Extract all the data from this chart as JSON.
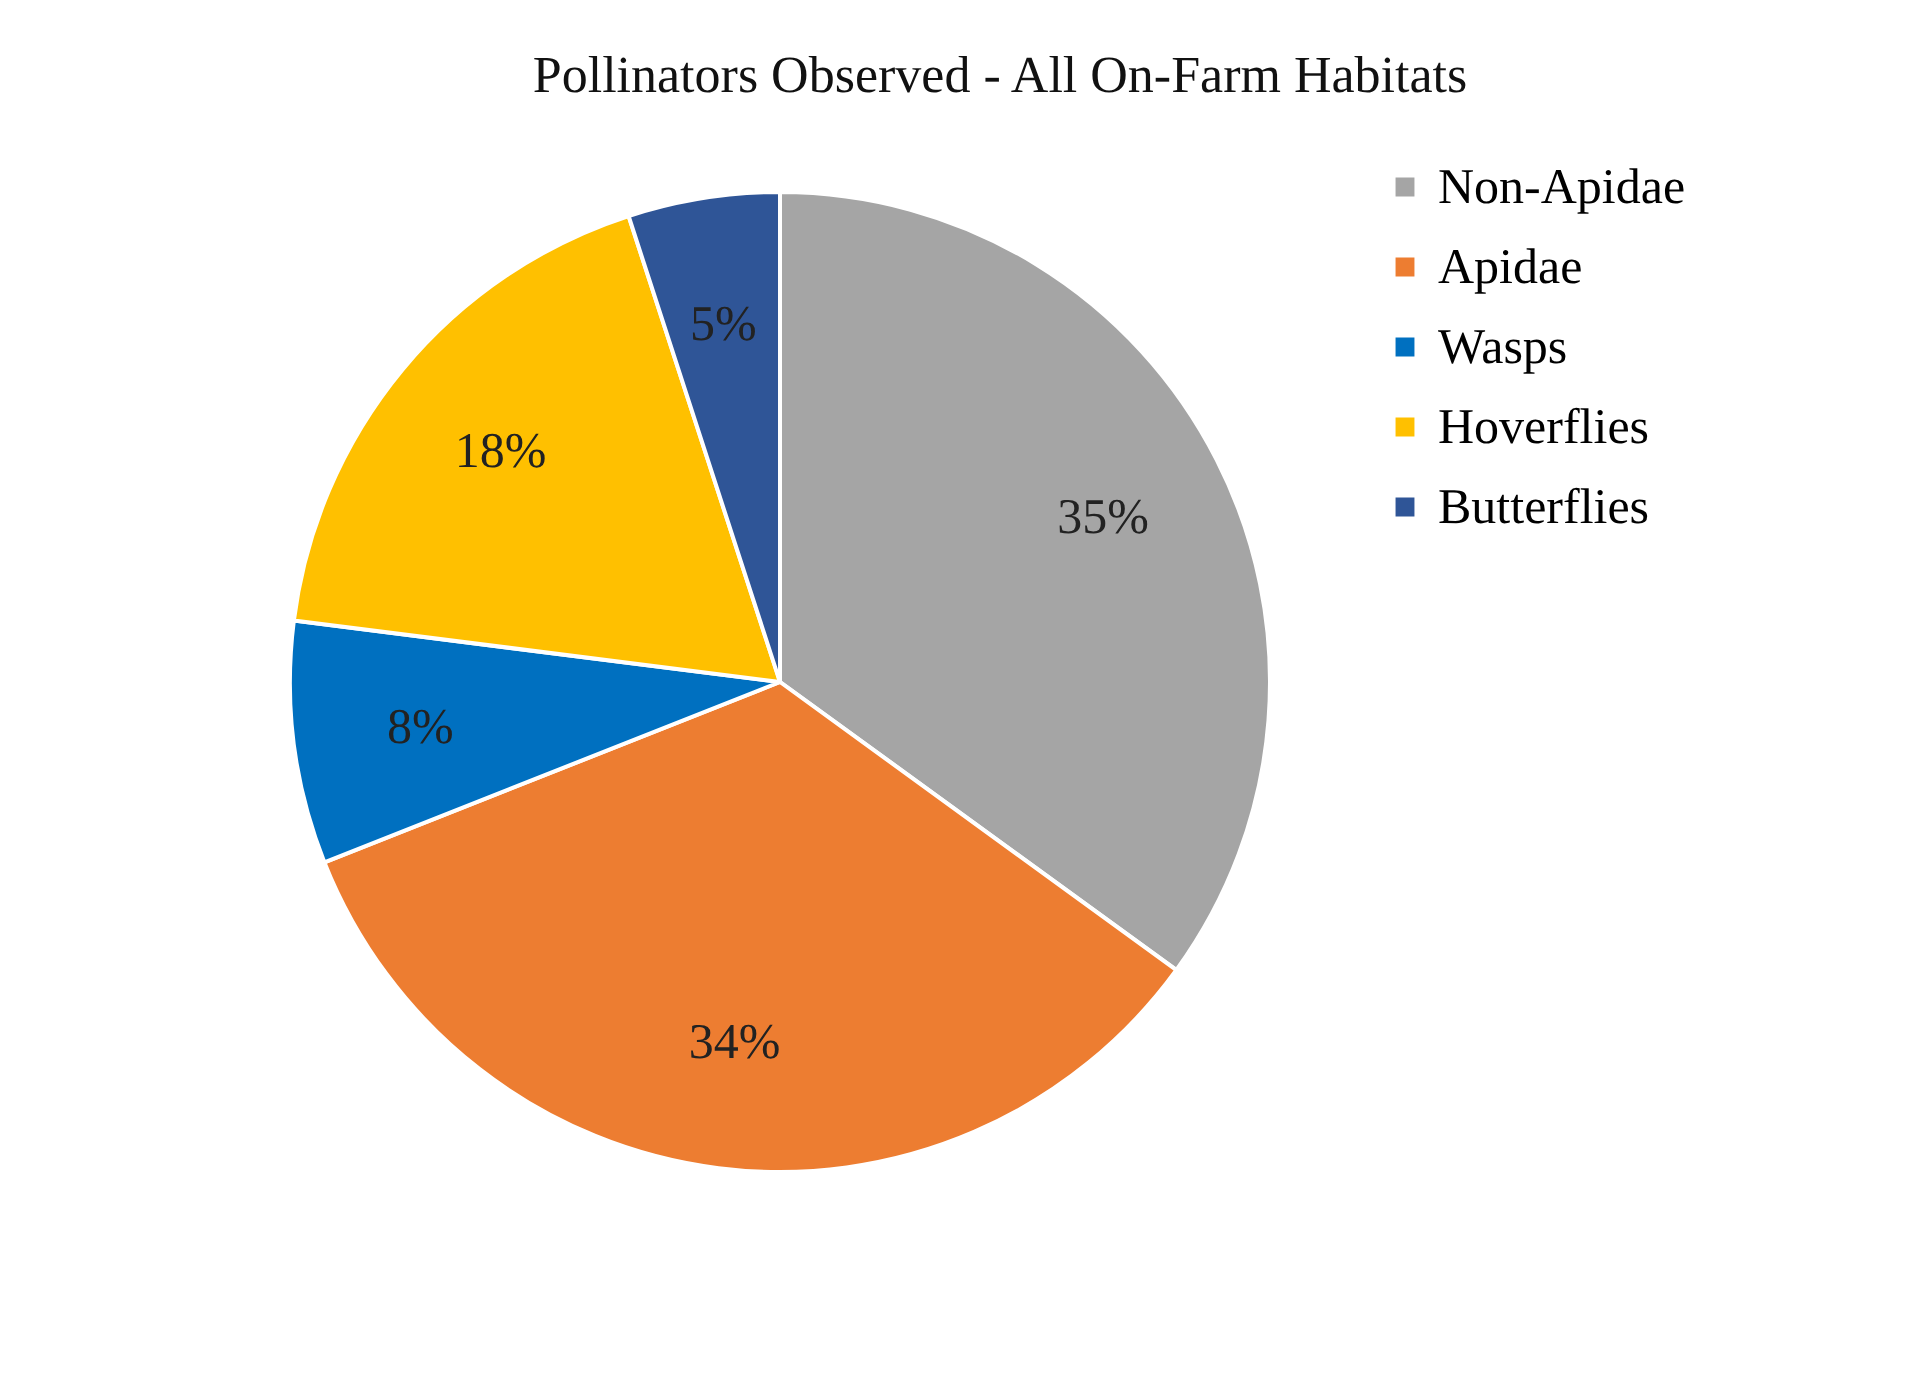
{
  "chart_data": {
    "type": "pie",
    "title": "Pollinators Observed -  All On-Farm Habitats",
    "categories": [
      "Non-Apidae",
      "Apidae",
      "Wasps",
      "Hoverflies",
      "Butterflies"
    ],
    "values": [
      35,
      34,
      8,
      18,
      5
    ],
    "value_labels": [
      "35%",
      "34%",
      "8%",
      "18%",
      "5%"
    ],
    "colors": [
      "#a5a5a5",
      "#ed7d31",
      "#0070c0",
      "#ffc000",
      "#2f5597"
    ],
    "legend": "right"
  }
}
